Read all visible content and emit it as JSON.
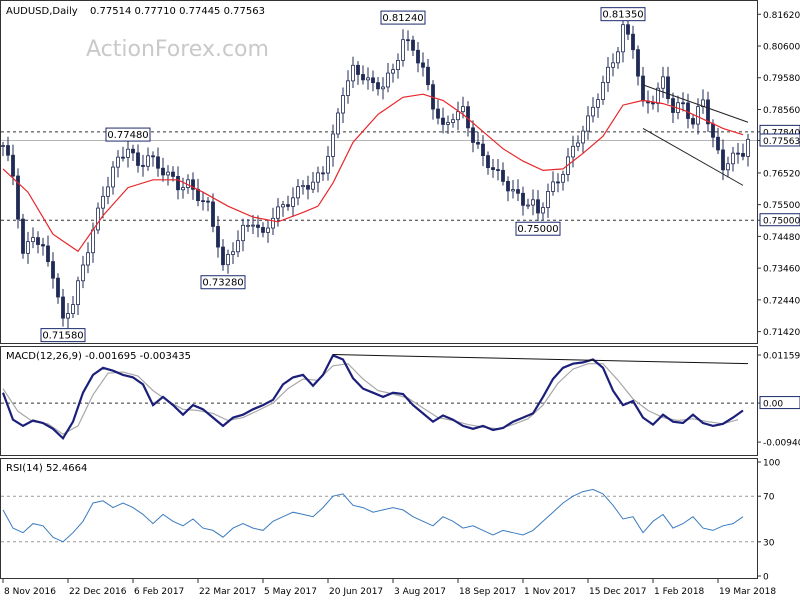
{
  "chart_data": {
    "type": "candlestick",
    "symbol": "AUDUSD,Daily",
    "ohlc": "0.77514 0.77710 0.77445 0.77563",
    "watermark": "ActionForex.com",
    "colors": {
      "candle": "#1f2a55",
      "sma": "#e8262a",
      "macd": "#1b1f7a",
      "signal": "#a8a8a8",
      "rsi": "#3b7bbf",
      "grid": "#777777",
      "border": "#333333"
    },
    "price_axis": {
      "ylim": [
        0.7115,
        0.8195
      ],
      "ticks": [
        "0.81620",
        "0.80600",
        "0.79580",
        "0.78560",
        "0.77840",
        "0.77563",
        "0.76520",
        "0.75500",
        "0.75000",
        "0.74480",
        "0.73460",
        "0.72440",
        "0.71420"
      ],
      "tick_values": [
        0.8162,
        0.806,
        0.7958,
        0.7856,
        0.7784,
        0.77563,
        0.7652,
        0.755,
        0.75,
        0.7448,
        0.7346,
        0.7244,
        0.7142
      ]
    },
    "horizontal_levels": [
      {
        "value": 0.7784,
        "label": "0.77840",
        "style": "dashed"
      },
      {
        "value": 0.75,
        "label": "0.75000",
        "style": "dashed"
      },
      {
        "value": 0.77563,
        "label": "0.77563",
        "style": "solid"
      }
    ],
    "annotations": [
      {
        "text": "0.71580",
        "x": 12,
        "y": 0.7158
      },
      {
        "text": "0.77480",
        "x": 25,
        "y": 0.7748
      },
      {
        "text": "0.73280",
        "x": 44,
        "y": 0.7328
      },
      {
        "text": "0.81240",
        "x": 80,
        "y": 0.8124
      },
      {
        "text": "0.75000",
        "x": 107,
        "y": 0.75
      },
      {
        "text": "0.81350",
        "x": 124,
        "y": 0.8135
      }
    ],
    "x_labels": [
      {
        "text": "8 Nov 2016",
        "x": 0
      },
      {
        "text": "22 Dec 2016",
        "x": 13
      },
      {
        "text": "6 Feb 2017",
        "x": 26
      },
      {
        "text": "22 Mar 2017",
        "x": 39
      },
      {
        "text": "5 May 2017",
        "x": 52
      },
      {
        "text": "20 Jun 2017",
        "x": 65
      },
      {
        "text": "3 Aug 2017",
        "x": 78
      },
      {
        "text": "18 Sep 2017",
        "x": 91
      },
      {
        "text": "1 Nov 2017",
        "x": 104
      },
      {
        "text": "15 Dec 2017",
        "x": 117
      },
      {
        "text": "1 Feb 2018",
        "x": 130
      },
      {
        "text": "19 Mar 2018",
        "x": 143
      }
    ],
    "price_path": [
      [
        0,
        0.774
      ],
      [
        2,
        0.764
      ],
      [
        4,
        0.738
      ],
      [
        6,
        0.746
      ],
      [
        8,
        0.741
      ],
      [
        10,
        0.733
      ],
      [
        12,
        0.7165
      ],
      [
        14,
        0.7235
      ],
      [
        16,
        0.735
      ],
      [
        18,
        0.748
      ],
      [
        20,
        0.758
      ],
      [
        22,
        0.766
      ],
      [
        24,
        0.7705
      ],
      [
        25,
        0.7735
      ],
      [
        27,
        0.7675
      ],
      [
        29,
        0.7715
      ],
      [
        31,
        0.767
      ],
      [
        33,
        0.764
      ],
      [
        35,
        0.7605
      ],
      [
        37,
        0.762
      ],
      [
        39,
        0.7585
      ],
      [
        41,
        0.7545
      ],
      [
        43,
        0.742
      ],
      [
        44,
        0.734
      ],
      [
        46,
        0.741
      ],
      [
        48,
        0.7475
      ],
      [
        50,
        0.7505
      ],
      [
        52,
        0.7445
      ],
      [
        54,
        0.751
      ],
      [
        56,
        0.754
      ],
      [
        58,
        0.758
      ],
      [
        60,
        0.762
      ],
      [
        62,
        0.7615
      ],
      [
        64,
        0.7655
      ],
      [
        66,
        0.776
      ],
      [
        68,
        0.792
      ],
      [
        70,
        0.799
      ],
      [
        72,
        0.7965
      ],
      [
        74,
        0.7925
      ],
      [
        76,
        0.793
      ],
      [
        78,
        0.7985
      ],
      [
        80,
        0.8085
      ],
      [
        82,
        0.8055
      ],
      [
        84,
        0.7975
      ],
      [
        86,
        0.7865
      ],
      [
        88,
        0.7795
      ],
      [
        90,
        0.7845
      ],
      [
        92,
        0.7855
      ],
      [
        94,
        0.7755
      ],
      [
        96,
        0.7695
      ],
      [
        98,
        0.7665
      ],
      [
        100,
        0.7635
      ],
      [
        102,
        0.7595
      ],
      [
        104,
        0.7555
      ],
      [
        106,
        0.7545
      ],
      [
        107,
        0.7515
      ],
      [
        109,
        0.7595
      ],
      [
        111,
        0.7635
      ],
      [
        113,
        0.7695
      ],
      [
        115,
        0.7755
      ],
      [
        117,
        0.7815
      ],
      [
        119,
        0.7905
      ],
      [
        121,
        0.7985
      ],
      [
        123,
        0.8055
      ],
      [
        124,
        0.8115
      ],
      [
        126,
        0.8055
      ],
      [
        128,
        0.7865
      ],
      [
        130,
        0.7895
      ],
      [
        132,
        0.7955
      ],
      [
        134,
        0.7855
      ],
      [
        136,
        0.7865
      ],
      [
        138,
        0.7805
      ],
      [
        140,
        0.7895
      ],
      [
        142,
        0.7765
      ],
      [
        144,
        0.7675
      ],
      [
        146,
        0.7695
      ],
      [
        148,
        0.7715
      ],
      [
        149,
        0.7756
      ]
    ],
    "sma_path": [
      [
        0,
        0.7665
      ],
      [
        5,
        0.759
      ],
      [
        10,
        0.7455
      ],
      [
        15,
        0.74
      ],
      [
        20,
        0.7515
      ],
      [
        25,
        0.7605
      ],
      [
        30,
        0.763
      ],
      [
        35,
        0.763
      ],
      [
        40,
        0.759
      ],
      [
        45,
        0.7545
      ],
      [
        50,
        0.751
      ],
      [
        55,
        0.7495
      ],
      [
        60,
        0.7525
      ],
      [
        63,
        0.7545
      ],
      [
        66,
        0.762
      ],
      [
        70,
        0.775
      ],
      [
        75,
        0.784
      ],
      [
        80,
        0.7895
      ],
      [
        84,
        0.7905
      ],
      [
        88,
        0.7885
      ],
      [
        92,
        0.784
      ],
      [
        96,
        0.7785
      ],
      [
        100,
        0.773
      ],
      [
        104,
        0.769
      ],
      [
        108,
        0.766
      ],
      [
        112,
        0.7665
      ],
      [
        116,
        0.7715
      ],
      [
        120,
        0.777
      ],
      [
        124,
        0.787
      ],
      [
        128,
        0.7885
      ],
      [
        132,
        0.7875
      ],
      [
        136,
        0.7855
      ],
      [
        140,
        0.7825
      ],
      [
        144,
        0.7795
      ],
      [
        148,
        0.7775
      ]
    ],
    "channel": {
      "upper": [
        [
          128,
          0.7935
        ],
        [
          149,
          0.7815
        ]
      ],
      "lower": [
        [
          128,
          0.7795
        ],
        [
          148,
          0.7612
        ]
      ]
    },
    "macd": {
      "title": "MACD(12,26,9) -0.001695 -0.003435",
      "ylim": [
        -0.0118,
        0.0128
      ],
      "ticks": [
        "0.01159",
        "0.00",
        "-0.009408"
      ],
      "tick_values": [
        0.01159,
        0.0,
        -0.009408
      ],
      "macd_path": [
        [
          0,
          0.0025
        ],
        [
          2,
          -0.004
        ],
        [
          4,
          -0.0055
        ],
        [
          6,
          -0.0042
        ],
        [
          8,
          -0.0048
        ],
        [
          10,
          -0.0062
        ],
        [
          12,
          -0.0085
        ],
        [
          14,
          -0.0045
        ],
        [
          16,
          0.0025
        ],
        [
          18,
          0.0068
        ],
        [
          20,
          0.0085
        ],
        [
          22,
          0.0078
        ],
        [
          24,
          0.0068
        ],
        [
          26,
          0.0062
        ],
        [
          28,
          0.0045
        ],
        [
          30,
          -0.0005
        ],
        [
          32,
          0.0015
        ],
        [
          34,
          -0.0005
        ],
        [
          36,
          -0.0028
        ],
        [
          38,
          -0.0005
        ],
        [
          40,
          -0.0015
        ],
        [
          42,
          -0.0035
        ],
        [
          44,
          -0.0055
        ],
        [
          46,
          -0.0035
        ],
        [
          48,
          -0.0028
        ],
        [
          50,
          -0.0015
        ],
        [
          52,
          -0.0005
        ],
        [
          54,
          0.0008
        ],
        [
          56,
          0.0045
        ],
        [
          58,
          0.0062
        ],
        [
          60,
          0.0068
        ],
        [
          62,
          0.0042
        ],
        [
          64,
          0.0068
        ],
        [
          66,
          0.0115
        ],
        [
          68,
          0.0105
        ],
        [
          70,
          0.006
        ],
        [
          72,
          0.0035
        ],
        [
          74,
          0.0025
        ],
        [
          76,
          0.0015
        ],
        [
          78,
          0.0025
        ],
        [
          80,
          0.0022
        ],
        [
          82,
          -0.0005
        ],
        [
          84,
          -0.0025
        ],
        [
          86,
          -0.0045
        ],
        [
          88,
          -0.003
        ],
        [
          90,
          -0.004
        ],
        [
          92,
          -0.0055
        ],
        [
          94,
          -0.0062
        ],
        [
          96,
          -0.0055
        ],
        [
          98,
          -0.0065
        ],
        [
          100,
          -0.006
        ],
        [
          102,
          -0.0045
        ],
        [
          104,
          -0.0035
        ],
        [
          106,
          -0.0025
        ],
        [
          108,
          0.0015
        ],
        [
          110,
          0.0058
        ],
        [
          112,
          0.0085
        ],
        [
          114,
          0.0095
        ],
        [
          116,
          0.0098
        ],
        [
          118,
          0.0105
        ],
        [
          120,
          0.0085
        ],
        [
          122,
          0.003
        ],
        [
          124,
          -0.0005
        ],
        [
          126,
          0.0005
        ],
        [
          128,
          -0.0035
        ],
        [
          130,
          -0.0052
        ],
        [
          132,
          -0.0028
        ],
        [
          134,
          -0.0045
        ],
        [
          136,
          -0.0048
        ],
        [
          138,
          -0.0028
        ],
        [
          140,
          -0.0048
        ],
        [
          142,
          -0.0055
        ],
        [
          144,
          -0.005
        ],
        [
          146,
          -0.0035
        ],
        [
          148,
          -0.0018
        ]
      ],
      "signal_path": [
        [
          0,
          0.0035
        ],
        [
          3,
          -0.002
        ],
        [
          6,
          -0.0045
        ],
        [
          9,
          -0.005
        ],
        [
          12,
          -0.0075
        ],
        [
          15,
          -0.0055
        ],
        [
          18,
          0.002
        ],
        [
          21,
          0.0072
        ],
        [
          24,
          0.0075
        ],
        [
          27,
          0.0065
        ],
        [
          30,
          0.003
        ],
        [
          33,
          0.0005
        ],
        [
          36,
          -0.0015
        ],
        [
          39,
          -0.0018
        ],
        [
          42,
          -0.0025
        ],
        [
          45,
          -0.0042
        ],
        [
          48,
          -0.0035
        ],
        [
          51,
          -0.0018
        ],
        [
          54,
          0.0
        ],
        [
          57,
          0.0035
        ],
        [
          60,
          0.0058
        ],
        [
          63,
          0.0055
        ],
        [
          66,
          0.009
        ],
        [
          69,
          0.0095
        ],
        [
          72,
          0.0058
        ],
        [
          75,
          0.003
        ],
        [
          78,
          0.0022
        ],
        [
          81,
          0.0012
        ],
        [
          84,
          -0.0012
        ],
        [
          87,
          -0.0035
        ],
        [
          90,
          -0.0042
        ],
        [
          93,
          -0.0052
        ],
        [
          96,
          -0.0058
        ],
        [
          99,
          -0.0062
        ],
        [
          102,
          -0.0052
        ],
        [
          105,
          -0.0038
        ],
        [
          108,
          -0.0005
        ],
        [
          111,
          0.0048
        ],
        [
          114,
          0.0082
        ],
        [
          117,
          0.0095
        ],
        [
          120,
          0.0095
        ],
        [
          123,
          0.0055
        ],
        [
          126,
          0.001
        ],
        [
          129,
          -0.0018
        ],
        [
          132,
          -0.0035
        ],
        [
          135,
          -0.0042
        ],
        [
          138,
          -0.0038
        ],
        [
          141,
          -0.0045
        ],
        [
          144,
          -0.005
        ],
        [
          147,
          -0.004
        ]
      ],
      "trendline": [
        [
          66,
          0.0117
        ],
        [
          149,
          0.0095
        ]
      ]
    },
    "rsi": {
      "title": "RSI(14) 52.4664",
      "ylim": [
        0,
        100
      ],
      "ticks": [
        "100",
        "70",
        "30",
        "0"
      ],
      "tick_values": [
        100,
        70,
        30,
        0
      ],
      "levels": [
        70,
        30
      ],
      "rsi_path": [
        [
          0,
          58
        ],
        [
          2,
          42
        ],
        [
          4,
          38
        ],
        [
          6,
          46
        ],
        [
          8,
          44
        ],
        [
          10,
          34
        ],
        [
          12,
          30
        ],
        [
          14,
          38
        ],
        [
          16,
          48
        ],
        [
          18,
          64
        ],
        [
          20,
          66
        ],
        [
          22,
          60
        ],
        [
          24,
          64
        ],
        [
          26,
          60
        ],
        [
          28,
          54
        ],
        [
          30,
          46
        ],
        [
          32,
          54
        ],
        [
          34,
          48
        ],
        [
          36,
          44
        ],
        [
          38,
          50
        ],
        [
          40,
          42
        ],
        [
          42,
          40
        ],
        [
          44,
          34
        ],
        [
          46,
          42
        ],
        [
          48,
          46
        ],
        [
          50,
          42
        ],
        [
          52,
          40
        ],
        [
          54,
          48
        ],
        [
          56,
          52
        ],
        [
          58,
          56
        ],
        [
          60,
          54
        ],
        [
          62,
          52
        ],
        [
          64,
          60
        ],
        [
          66,
          70
        ],
        [
          68,
          72
        ],
        [
          70,
          62
        ],
        [
          72,
          60
        ],
        [
          74,
          56
        ],
        [
          76,
          58
        ],
        [
          78,
          60
        ],
        [
          80,
          58
        ],
        [
          82,
          52
        ],
        [
          84,
          48
        ],
        [
          86,
          44
        ],
        [
          88,
          52
        ],
        [
          90,
          48
        ],
        [
          92,
          42
        ],
        [
          94,
          44
        ],
        [
          96,
          40
        ],
        [
          98,
          36
        ],
        [
          100,
          40
        ],
        [
          102,
          38
        ],
        [
          104,
          36
        ],
        [
          106,
          40
        ],
        [
          108,
          48
        ],
        [
          110,
          56
        ],
        [
          112,
          64
        ],
        [
          114,
          70
        ],
        [
          116,
          74
        ],
        [
          118,
          76
        ],
        [
          120,
          72
        ],
        [
          122,
          62
        ],
        [
          124,
          50
        ],
        [
          126,
          52
        ],
        [
          128,
          38
        ],
        [
          130,
          48
        ],
        [
          132,
          54
        ],
        [
          134,
          42
        ],
        [
          136,
          46
        ],
        [
          138,
          52
        ],
        [
          140,
          42
        ],
        [
          142,
          40
        ],
        [
          144,
          44
        ],
        [
          146,
          46
        ],
        [
          148,
          52
        ]
      ]
    }
  }
}
